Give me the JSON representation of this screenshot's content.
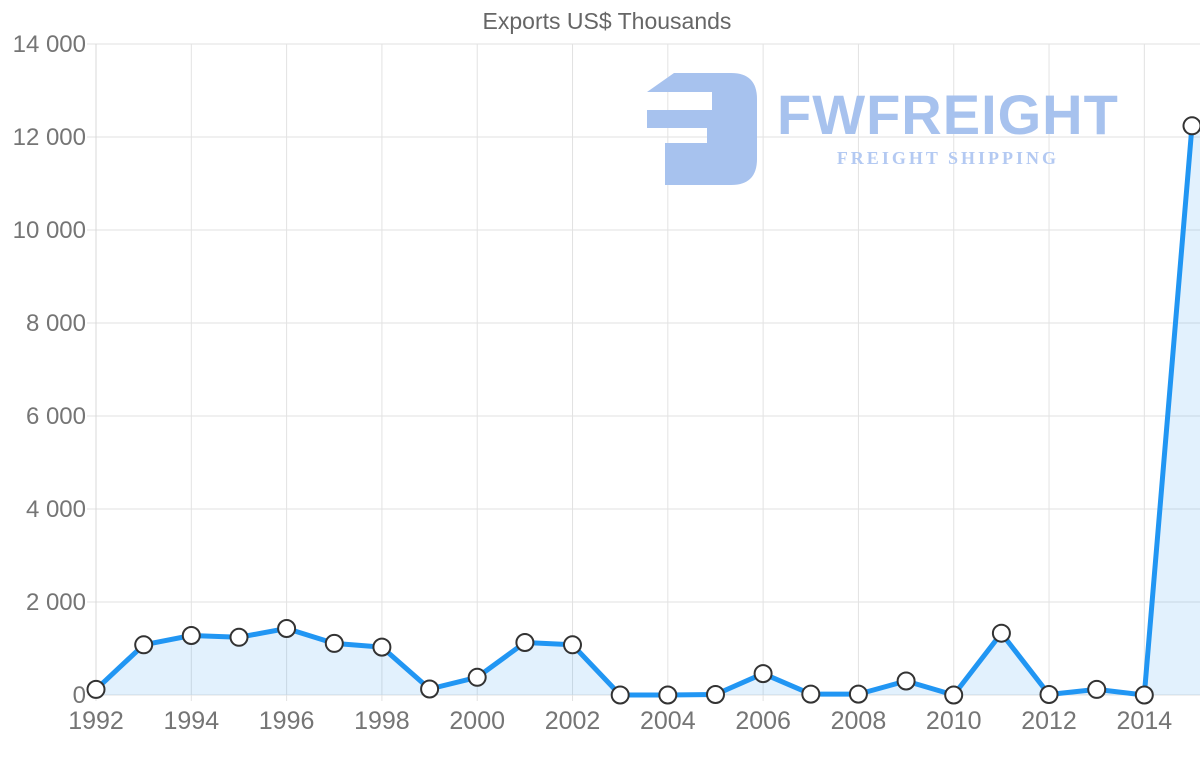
{
  "title": "Exports US$ Thousands",
  "watermark": {
    "brand": "FWFREIGHT",
    "tagline": "FREIGHT SHIPPING"
  },
  "colors": {
    "line": "#2196f3",
    "area_fill": "rgba(33,150,243,0.13)",
    "marker_fill": "#ffffff",
    "marker_stroke": "#333333",
    "grid": "#e2e2e2",
    "axis": "#d8d8d8",
    "label": "#757575",
    "title": "#666666",
    "watermark": "#a7c2ee",
    "watermark_sub": "#b3c9f2"
  },
  "chart_data": {
    "type": "line",
    "title": "Exports US$ Thousands",
    "xlabel": "",
    "ylabel": "",
    "x": [
      1992,
      1993,
      1994,
      1995,
      1996,
      1997,
      1998,
      1999,
      2000,
      2001,
      2002,
      2003,
      2004,
      2005,
      2006,
      2007,
      2008,
      2009,
      2010,
      2011,
      2012,
      2013,
      2014,
      2015
    ],
    "values": [
      120,
      1080,
      1280,
      1240,
      1430,
      1110,
      1030,
      130,
      380,
      1130,
      1080,
      0,
      0,
      10,
      460,
      20,
      20,
      300,
      0,
      1330,
      10,
      120,
      0,
      12240
    ],
    "series_name": "Exports US$ Thousands",
    "ylim": [
      0,
      14000
    ],
    "ytick_step": 2000,
    "ytick_labels": [
      "0",
      "2 000",
      "4 000",
      "6 000",
      "8 000",
      "10 000",
      "12 000",
      "14 000"
    ],
    "xtick_years": [
      1992,
      1994,
      1996,
      1998,
      2000,
      2002,
      2004,
      2006,
      2008,
      2010,
      2012,
      2014
    ],
    "xtick_labels": [
      "1992",
      "1994",
      "1996",
      "1998",
      "2000",
      "2002",
      "2004",
      "2006",
      "2008",
      "2010",
      "2012",
      "2014"
    ],
    "grid": true,
    "legend": false,
    "area_filled": true,
    "markers": true
  }
}
